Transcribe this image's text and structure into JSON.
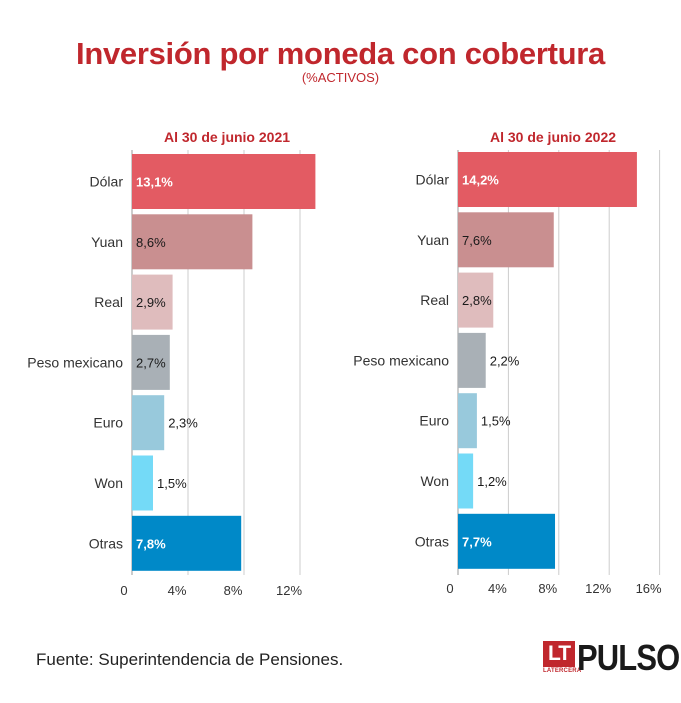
{
  "header": {
    "title": "Inversión por moneda con cobertura",
    "subtitle": "(%ACTIVOS)"
  },
  "footer": {
    "source": "Fuente: Superintendencia de Pensiones.",
    "logo_lt": "LT",
    "logo_tagline": "LATERCERA",
    "logo_brand": "PULSO"
  },
  "colors": {
    "title": "#c0272d",
    "bars": [
      "#e35b63",
      "#c98f90",
      "#dfbcbd",
      "#a9b0b6",
      "#98c9dc",
      "#74daf7",
      "#0089c8"
    ],
    "grid": "#cccccc"
  },
  "chart_data": [
    {
      "type": "bar",
      "orientation": "horizontal",
      "title": "Al 30 de junio 2021",
      "categories": [
        "Dólar",
        "Yuan",
        "Real",
        "Peso mexicano",
        "Euro",
        "Won",
        "Otras"
      ],
      "values": [
        13.1,
        8.6,
        2.9,
        2.7,
        2.3,
        1.5,
        7.8
      ],
      "data_labels": [
        "13,1%",
        "8,6%",
        "2,9%",
        "2,7%",
        "2,3%",
        "1,5%",
        "7,8%"
      ],
      "xlim": [
        0,
        14
      ],
      "xticks": [
        0,
        4,
        8,
        12
      ],
      "xtick_labels": [
        "0",
        "4%",
        "8%",
        "12%"
      ],
      "grid": true
    },
    {
      "type": "bar",
      "orientation": "horizontal",
      "title": "Al 30 de junio 2022",
      "categories": [
        "Dólar",
        "Yuan",
        "Real",
        "Peso mexicano",
        "Euro",
        "Won",
        "Otras"
      ],
      "values": [
        14.2,
        7.6,
        2.8,
        2.2,
        1.5,
        1.2,
        7.7
      ],
      "data_labels": [
        "14,2%",
        "7,6%",
        "2,8%",
        "2,2%",
        "1,5%",
        "1,2%",
        "7,7%"
      ],
      "xlim": [
        0,
        16
      ],
      "xticks": [
        0,
        4,
        8,
        12,
        16
      ],
      "xtick_labels": [
        "0",
        "4%",
        "8%",
        "12%",
        "16%"
      ],
      "grid": true
    }
  ]
}
